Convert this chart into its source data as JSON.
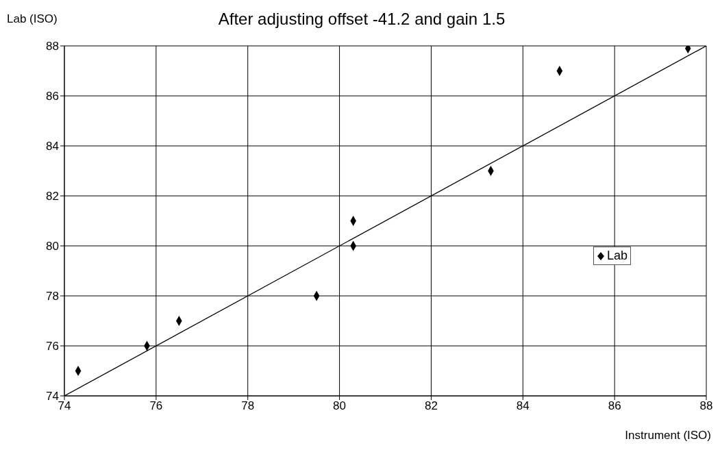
{
  "chart_data": {
    "type": "scatter",
    "title": "After adjusting offset -41.2 and gain 1.5",
    "xlabel": "Instrument (ISO)",
    "ylabel": "Lab (ISO)",
    "x": [
      74.3,
      75.8,
      76.5,
      79.5,
      80.3,
      80.3,
      83.3,
      84.8,
      87.6
    ],
    "series": [
      {
        "name": "Lab",
        "color": "#000000",
        "marker": "diamond",
        "values": [
          75,
          76,
          77,
          78,
          81,
          80,
          83,
          87,
          87.9
        ]
      },
      {
        "type": "line",
        "color": "#000000",
        "marker": "none",
        "x": [
          74,
          88
        ],
        "values": [
          74,
          88
        ]
      }
    ],
    "xlim": [
      74,
      88
    ],
    "ylim": [
      74,
      88
    ],
    "xticks": [
      74,
      76,
      78,
      80,
      82,
      84,
      86,
      88
    ],
    "yticks": [
      74,
      76,
      78,
      80,
      82,
      84,
      86,
      88
    ],
    "grid": true,
    "legend": "right"
  }
}
